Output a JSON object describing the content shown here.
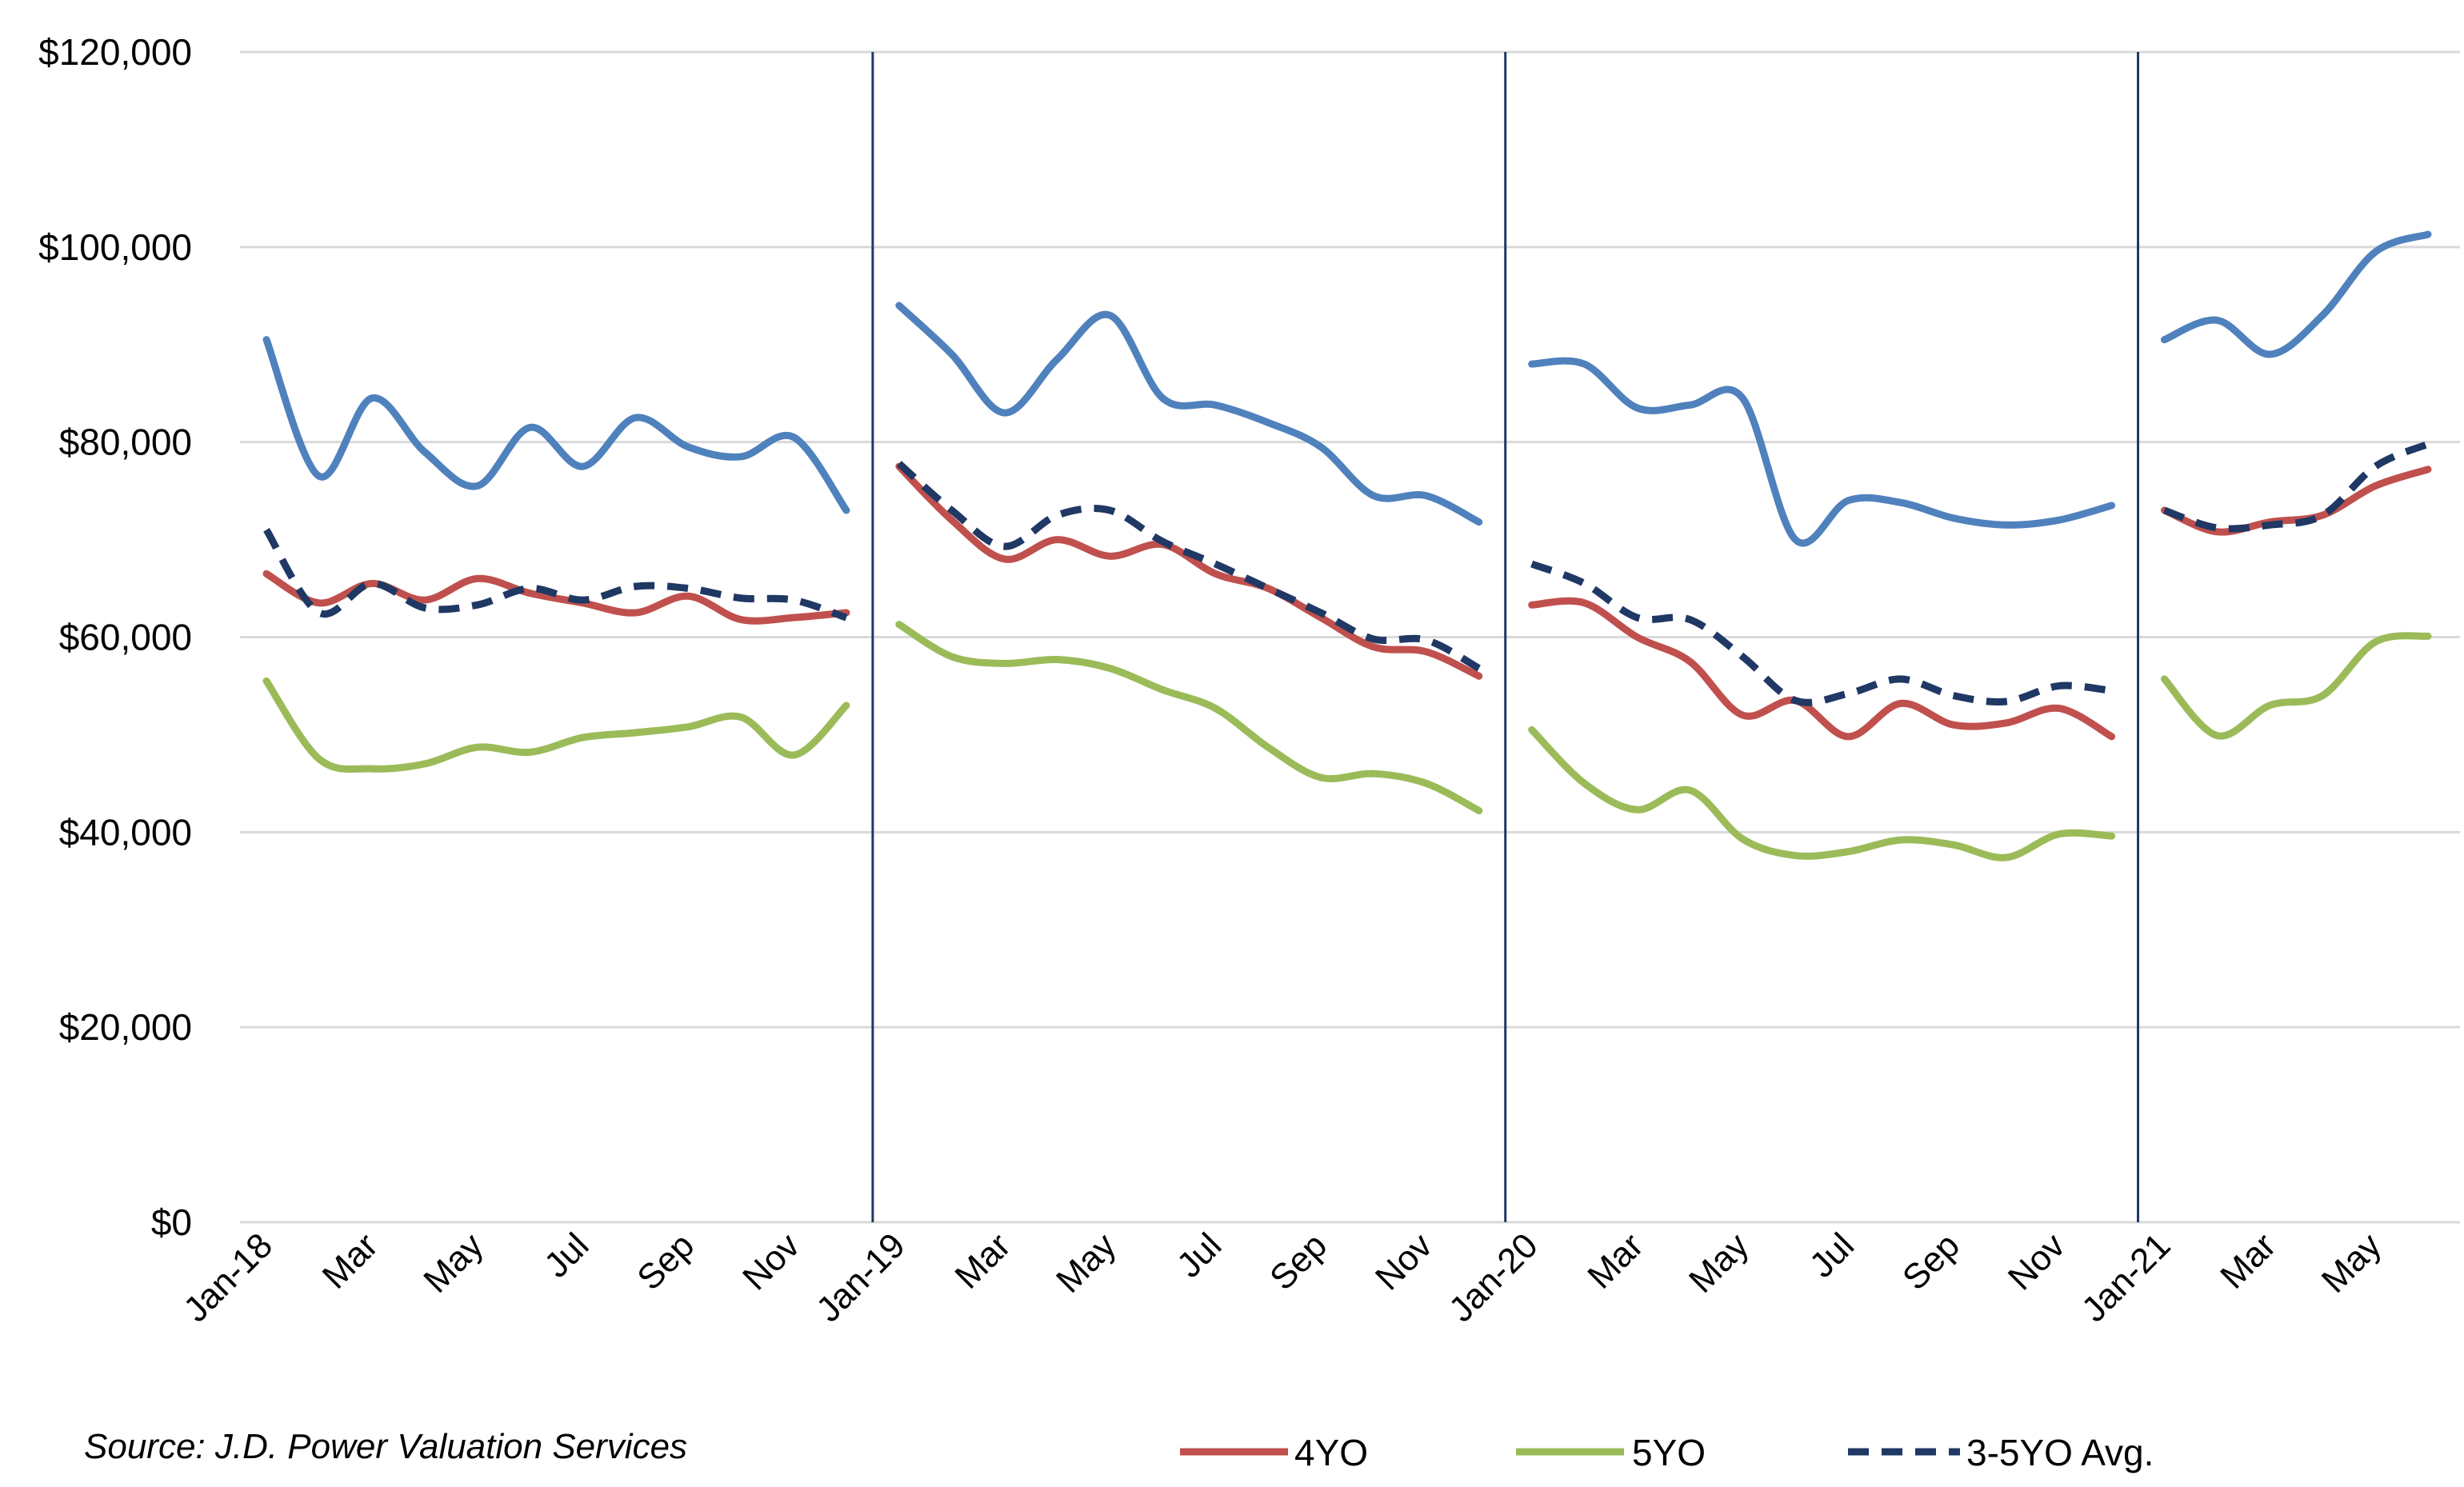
{
  "chart_data": {
    "type": "line",
    "title": "",
    "xlabel": "",
    "ylabel": "",
    "ylim": [
      0,
      120000
    ],
    "y_ticks": [
      "$0",
      "$20,000",
      "$40,000",
      "$60,000",
      "$80,000",
      "$100,000",
      "$120,000"
    ],
    "y_tick_values": [
      0,
      20000,
      40000,
      60000,
      80000,
      100000,
      120000
    ],
    "x": [
      "Jan-18",
      "Feb-18",
      "Mar-18",
      "Apr-18",
      "May-18",
      "Jun-18",
      "Jul-18",
      "Aug-18",
      "Sep-18",
      "Oct-18",
      "Nov-18",
      "Dec-18",
      "Jan-19",
      "Feb-19",
      "Mar-19",
      "Apr-19",
      "May-19",
      "Jun-19",
      "Jul-19",
      "Aug-19",
      "Sep-19",
      "Oct-19",
      "Nov-19",
      "Dec-19",
      "Jan-20",
      "Feb-20",
      "Mar-20",
      "Apr-20",
      "May-20",
      "Jun-20",
      "Jul-20",
      "Aug-20",
      "Sep-20",
      "Oct-20",
      "Nov-20",
      "Dec-20",
      "Jan-21",
      "Feb-21",
      "Mar-21",
      "Apr-21",
      "May-21",
      "Jun-21"
    ],
    "x_tick_labels": [
      "Jan-18",
      "Mar",
      "May",
      "Jul",
      "Sep",
      "Nov",
      "Jan-19",
      "Mar",
      "May",
      "Jul",
      "Sep",
      "Nov",
      "Jan-20",
      "Mar",
      "May",
      "Jul",
      "Sep",
      "Nov",
      "Jan-21",
      "Mar",
      "May"
    ],
    "x_tick_indices": [
      0,
      2,
      4,
      6,
      8,
      10,
      12,
      14,
      16,
      18,
      20,
      22,
      24,
      26,
      28,
      30,
      32,
      34,
      36,
      38,
      40
    ],
    "year_dividers_after_index": [
      11,
      23,
      35
    ],
    "grid": true,
    "legend_position": "bottom",
    "series": [
      {
        "name": "",
        "color": "#4f81bd",
        "dash": false,
        "values": [
          90500,
          76500,
          84500,
          79000,
          75500,
          81500,
          77500,
          82500,
          79500,
          78500,
          80500,
          73000,
          94000,
          89000,
          83000,
          88500,
          93000,
          84500,
          83800,
          82000,
          79500,
          74500,
          74500,
          71800,
          88000,
          88000,
          83500,
          83800,
          84500,
          70000,
          74000,
          73800,
          72200,
          71500,
          72000,
          73500,
          90500,
          92500,
          89000,
          93000,
          99500,
          101300
        ]
      },
      {
        "name": "4YO",
        "color": "#c0504d",
        "dash": false,
        "values": [
          66500,
          63500,
          65500,
          63800,
          66000,
          64500,
          63500,
          62500,
          64200,
          61800,
          62000,
          62500,
          77500,
          72000,
          68000,
          70000,
          68300,
          69500,
          66500,
          65000,
          62000,
          59000,
          58500,
          56000,
          63300,
          63500,
          60000,
          57500,
          52000,
          53500,
          49800,
          53200,
          51000,
          51200,
          52700,
          49800,
          73000,
          70800,
          71800,
          72500,
          75500,
          77200
        ]
      },
      {
        "name": "5YO",
        "color": "#9bbb59",
        "dash": false,
        "values": [
          55500,
          47500,
          46500,
          47000,
          48700,
          48200,
          49700,
          50200,
          50800,
          51800,
          47900,
          53000,
          61300,
          58000,
          57300,
          57700,
          56800,
          54600,
          52700,
          48700,
          45600,
          46000,
          45000,
          42200,
          50500,
          45000,
          42300,
          44300,
          39300,
          37600,
          38000,
          39200,
          38700,
          37400,
          39800,
          39600,
          55700,
          49900,
          53000,
          54000,
          59500,
          60100
        ]
      },
      {
        "name": "3-5YO Avg.",
        "color": "#1f3864",
        "dash": true,
        "values": [
          71000,
          62500,
          65500,
          63000,
          63300,
          65000,
          63800,
          65200,
          65000,
          64000,
          63800,
          62000,
          77800,
          73000,
          69300,
          72500,
          73000,
          69800,
          67500,
          65000,
          62500,
          59800,
          59700,
          56800,
          67500,
          65500,
          62000,
          61800,
          58000,
          53500,
          54200,
          55700,
          54000,
          53400,
          55000,
          54500,
          73000,
          71200,
          71500,
          72500,
          77500,
          79800
        ]
      }
    ],
    "source": "Source: J.D. Power Valuation Services"
  }
}
